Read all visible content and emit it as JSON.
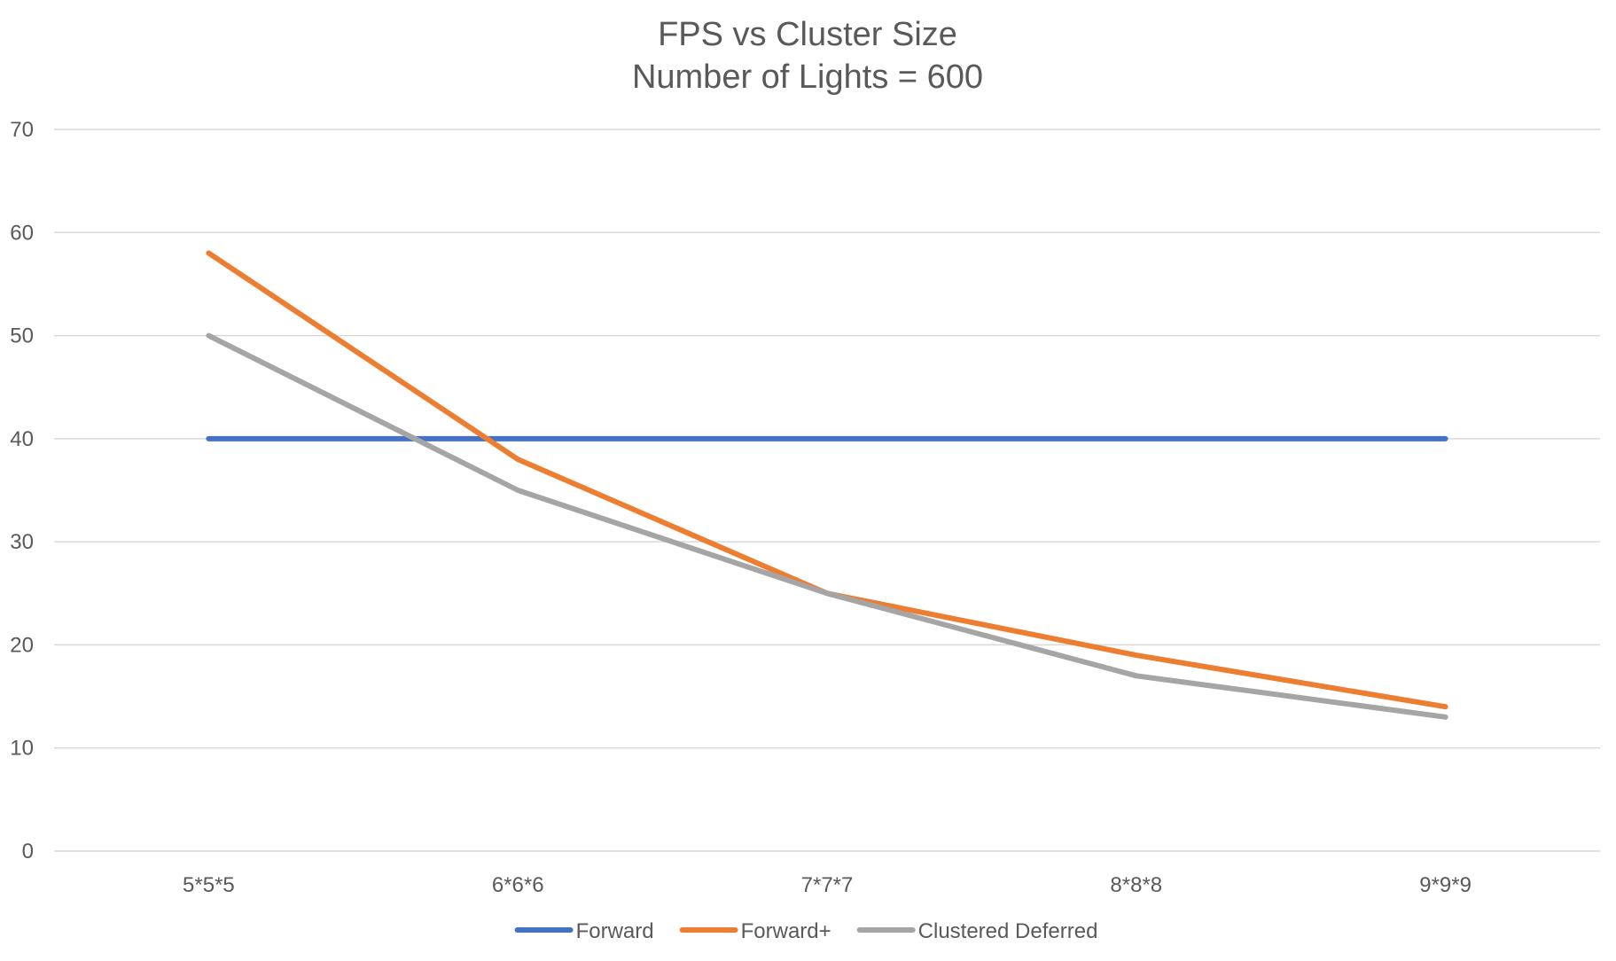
{
  "chart_data": {
    "type": "line",
    "title": "FPS vs Cluster Size",
    "subtitle": "Number of Lights = 600",
    "xlabel": "",
    "ylabel": "",
    "categories": [
      "5*5*5",
      "6*6*6",
      "7*7*7",
      "8*8*8",
      "9*9*9"
    ],
    "ylim": [
      0,
      70
    ],
    "yticks": [
      0,
      10,
      20,
      30,
      40,
      50,
      60,
      70
    ],
    "grid": true,
    "legend_position": "bottom",
    "series": [
      {
        "name": "Forward",
        "values": [
          40,
          40,
          40,
          40,
          40
        ],
        "color": "#4472c4"
      },
      {
        "name": "Forward+",
        "values": [
          58,
          38,
          25,
          19,
          14
        ],
        "color": "#ed7d31"
      },
      {
        "name": "Clustered Deferred",
        "values": [
          50,
          35,
          25,
          17,
          13
        ],
        "color": "#a5a5a5"
      }
    ]
  }
}
